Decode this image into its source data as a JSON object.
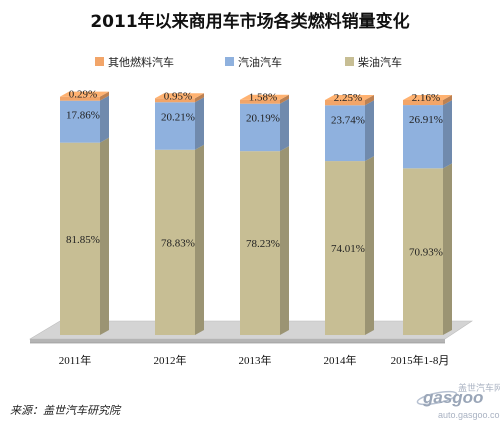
{
  "colors": {
    "other": "#F2A569",
    "gasoline": "#8FB1DE",
    "diesel": "#C7BE94",
    "floor": "#D4D4D4"
  },
  "chart_data": {
    "type": "bar",
    "stacked": true,
    "percent": true,
    "title": "2011年以来商用车市场各类燃料销量变化",
    "categories": [
      "2011年",
      "2012年",
      "2013年",
      "2014年",
      "2015年1-8月"
    ],
    "series": [
      {
        "name": "柴油汽车",
        "key": "diesel",
        "values": [
          81.85,
          78.83,
          78.23,
          74.01,
          70.93
        ],
        "labels": [
          "81.85%",
          "78.83%",
          "78.23%",
          "74.01%",
          "70.93%"
        ]
      },
      {
        "name": "汽油汽车",
        "key": "gasoline",
        "values": [
          17.86,
          20.21,
          20.19,
          23.74,
          26.91
        ],
        "labels": [
          "17.86%",
          "20.21%",
          "20.19%",
          "23.74%",
          "26.91%"
        ]
      },
      {
        "name": "其他燃料汽车",
        "key": "other",
        "values": [
          0.29,
          0.95,
          1.58,
          2.25,
          2.16
        ],
        "labels": [
          "0.29%",
          "0.95%",
          "1.58%",
          "2.25%",
          "2.16%"
        ]
      }
    ],
    "legend_order": [
      "other",
      "gasoline",
      "diesel"
    ],
    "legend_position": "top",
    "ylim": [
      0,
      100
    ],
    "xlabel": "",
    "ylabel": ""
  },
  "source": "来源：盖世汽车研究院",
  "watermark": {
    "logo": "gasgoo",
    "tagline": "盖世汽车网",
    "url": "auto.gasgoo.com"
  }
}
